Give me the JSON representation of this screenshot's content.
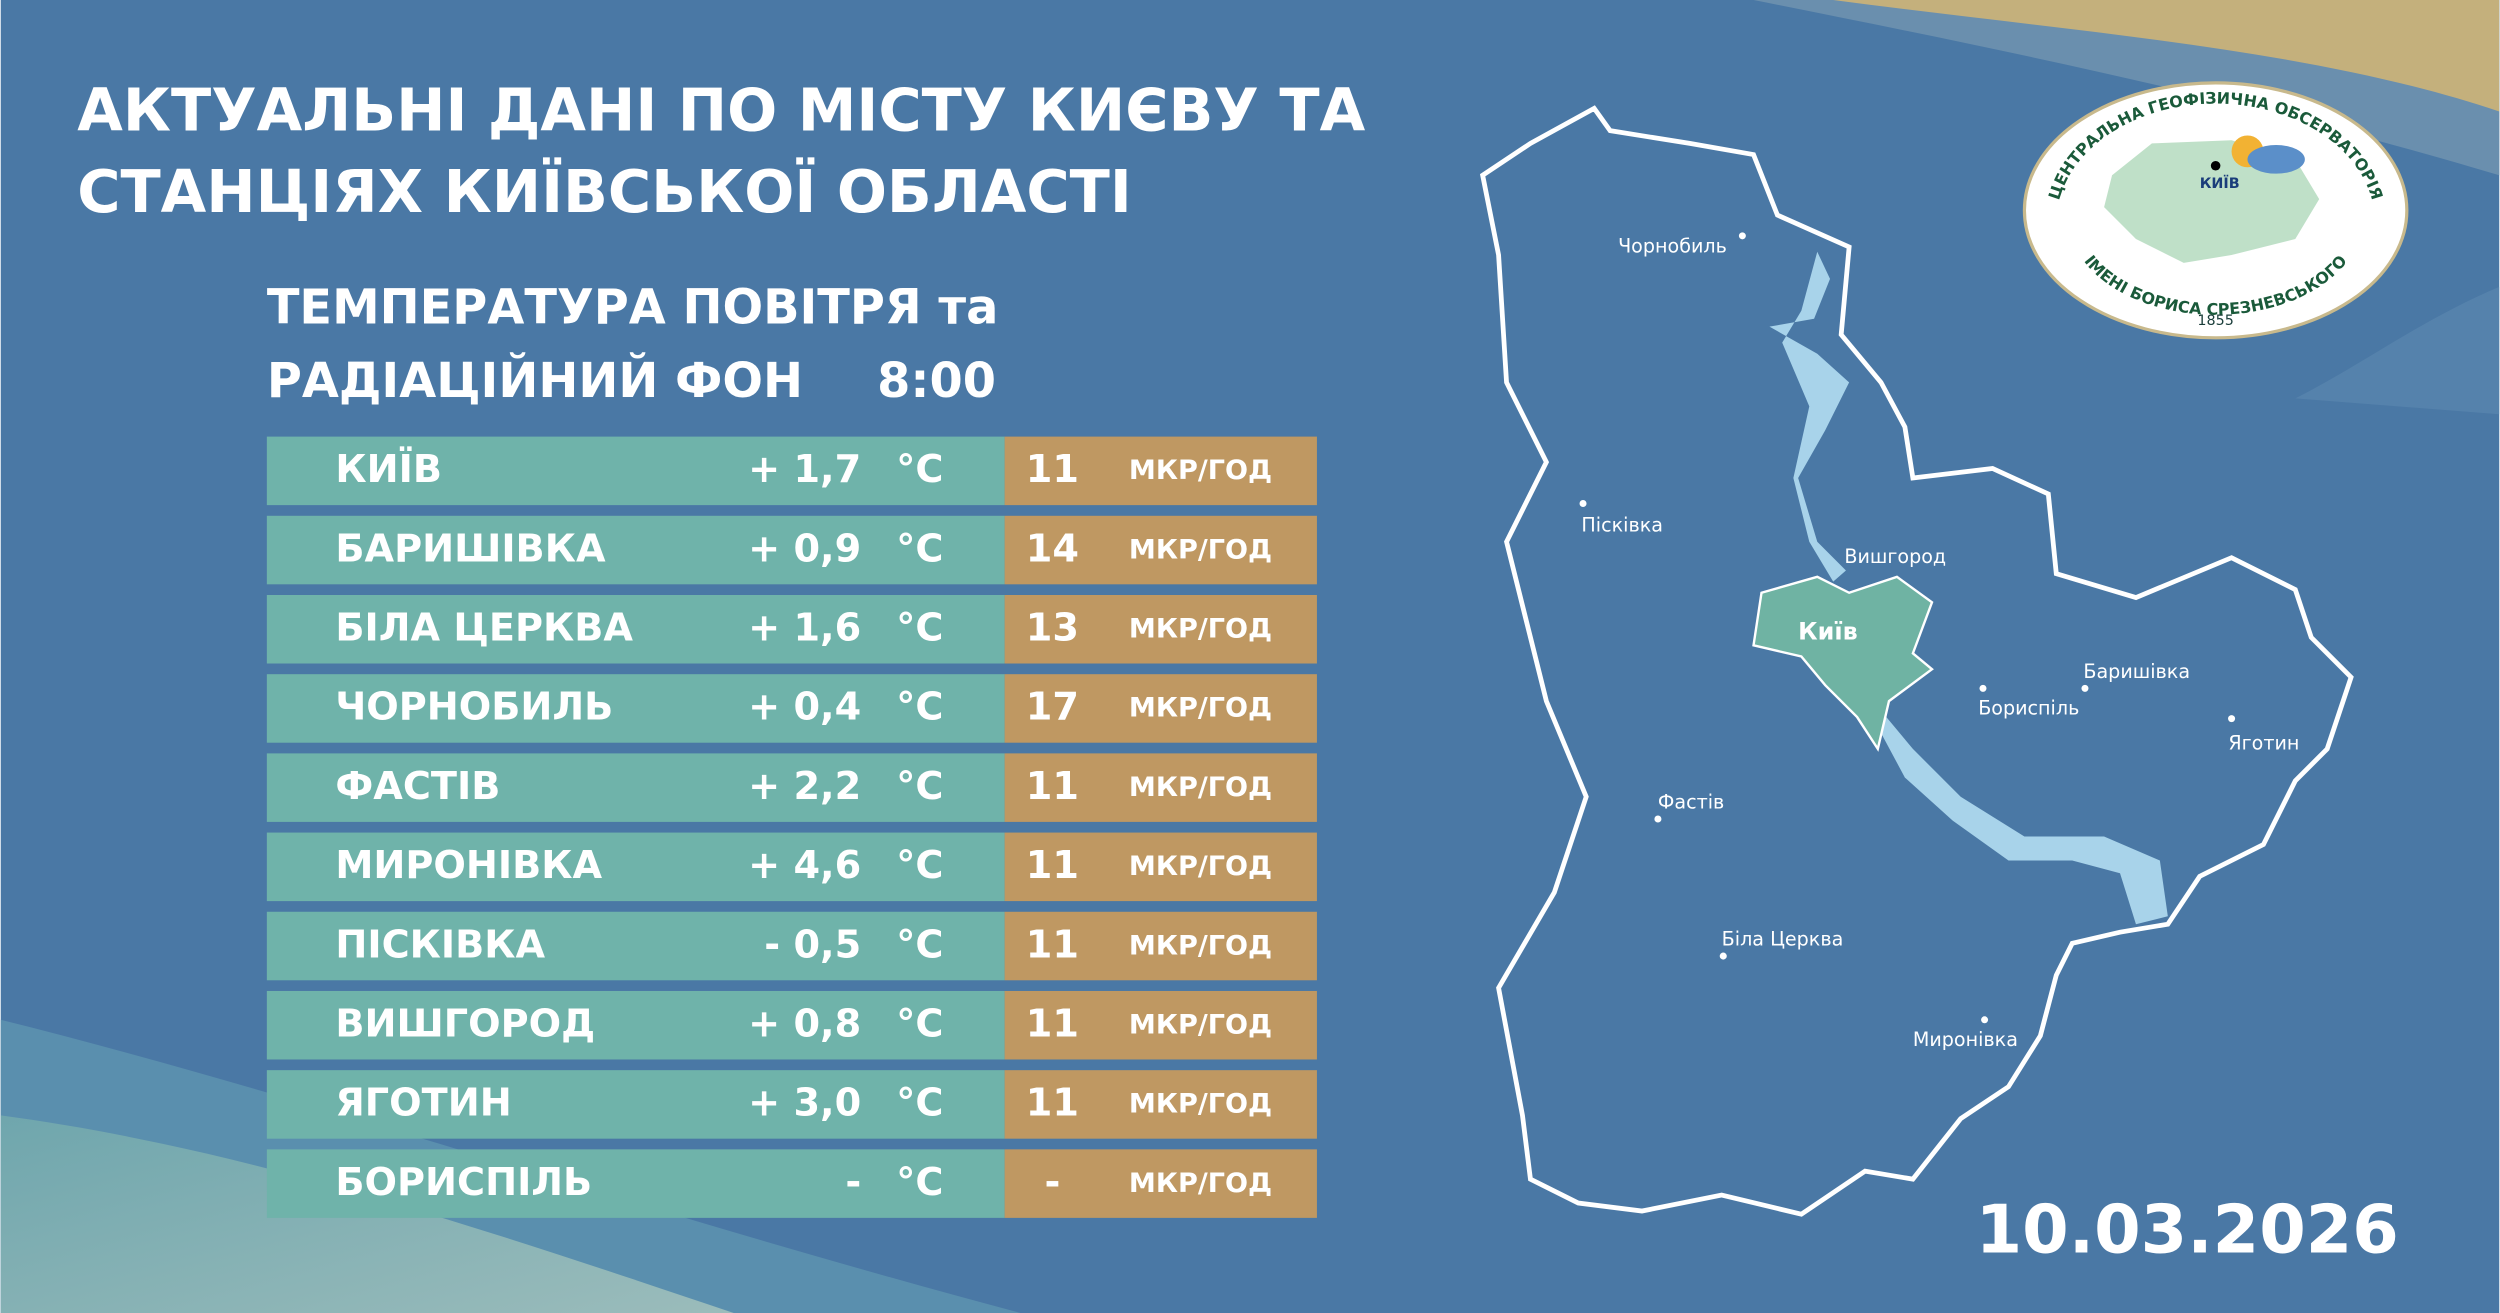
{
  "header": {
    "title_lines": [
      "АКТУАЛЬНІ ДАНІ ПО МІСТУ КИЄВУ ТА",
      "СТАНЦІЯХ КИЇВСЬКОЇ ОБЛАСТІ"
    ]
  },
  "subtitle": {
    "lines": [
      "ТЕМПЕРАТУРА ПОВІТРЯ та",
      "РАДІАЦІЙНИЙ ФОН"
    ],
    "time": "8:00"
  },
  "table": {
    "temp_unit": "°C",
    "rad_unit": "МКР/ГОД",
    "rows": [
      [
        "КИЇВ",
        "+ 1,7",
        "11"
      ],
      [
        "БАРИШІВКА",
        "+ 0,9",
        "14"
      ],
      [
        "БІЛА ЦЕРКВА",
        "+ 1,6",
        "13"
      ],
      [
        "ЧОРНОБИЛЬ",
        "+ 0,4",
        "17"
      ],
      [
        "ФАСТІВ",
        "+ 2,2",
        "11"
      ],
      [
        "МИРОНІВКА",
        "+ 4,6",
        "11"
      ],
      [
        "ПІСКІВКА",
        "- 0,5",
        "11"
      ],
      [
        "ВИШГОРОД",
        "+ 0,8",
        "11"
      ],
      [
        "ЯГОТИН",
        "+ 3,0",
        "11"
      ],
      [
        "БОРИСПІЛЬ",
        "-",
        "-"
      ]
    ]
  },
  "map": {
    "labels": [
      "Чорнобиль",
      "Пісківка",
      "Вишгород",
      "Київ",
      "Баришівка",
      "Бориспіль",
      "Яготин",
      "Фастів",
      "Біла Церква",
      "Миронівка"
    ]
  },
  "logo": {
    "top": "ЦЕНТРАЛЬНА ГЕОФІЗИЧНА ОБСЕРВАТОРІЯ",
    "bottom": "ІМЕНІ БОРИСА СРЕЗНЕВСЬКОГО",
    "year": "1855",
    "city": "КИЇВ"
  },
  "date": "10.03.2026"
}
